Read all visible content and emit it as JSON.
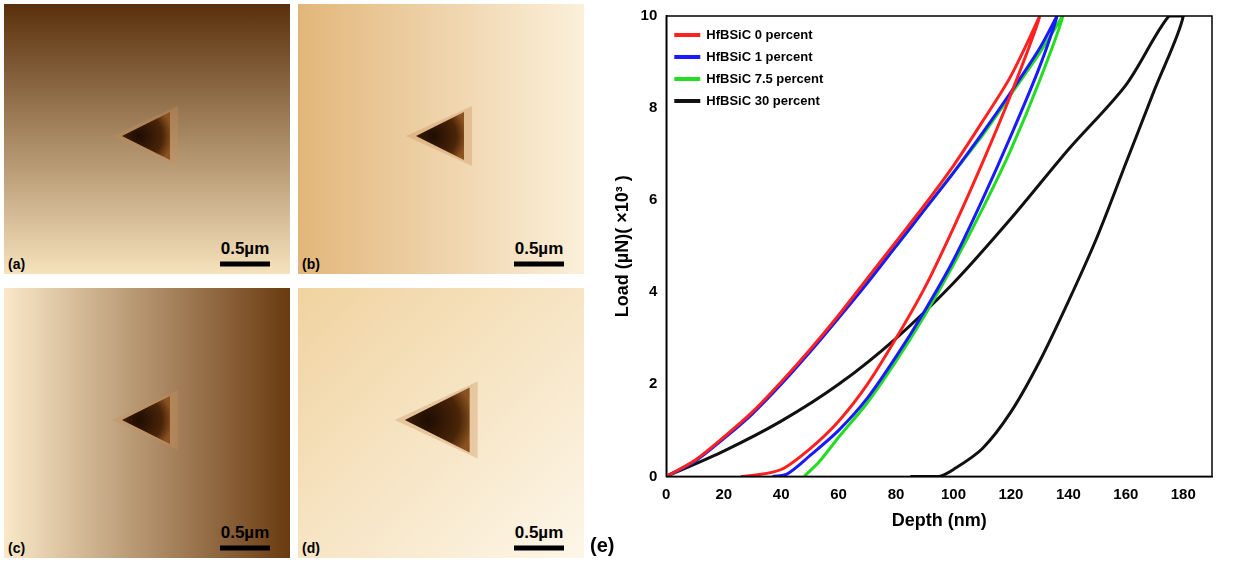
{
  "panels": [
    {
      "label": "(a)",
      "scale_bar": "0.5µm"
    },
    {
      "label": "(b)",
      "scale_bar": "0.5µm"
    },
    {
      "label": "(c)",
      "scale_bar": "0.5µm"
    },
    {
      "label": "(d)",
      "scale_bar": "0.5µm"
    }
  ],
  "chart_data": {
    "type": "line",
    "panel_label": "(e)",
    "x_label": "Depth (nm)",
    "y_label": "Load (µN)( ×10³ )",
    "xlim": [
      0,
      190
    ],
    "xticks": [
      0,
      20,
      40,
      60,
      80,
      100,
      120,
      140,
      160,
      180
    ],
    "ylim": [
      0,
      10
    ],
    "yticks": [
      0,
      2,
      4,
      6,
      8,
      10
    ],
    "grid": false,
    "legend": "upper left",
    "series": [
      {
        "name": "HfBSiC 0 percent",
        "color": "#ff2020",
        "x": [
          0,
          10,
          20,
          30,
          40,
          50,
          60,
          70,
          80,
          90,
          100,
          110,
          120,
          130,
          120,
          110,
          100,
          90,
          80,
          70,
          60,
          50,
          40,
          30,
          26
        ],
        "values": [
          0,
          0.35,
          0.85,
          1.4,
          2.05,
          2.75,
          3.5,
          4.3,
          5.1,
          5.9,
          6.75,
          7.7,
          8.7,
          10,
          8.3,
          6.8,
          5.4,
          4.1,
          3.0,
          2.0,
          1.2,
          0.6,
          0.15,
          0.02,
          0
        ]
      },
      {
        "name": "HfBSiC 1 percent",
        "color": "#1a1aff",
        "x": [
          0,
          10,
          20,
          30,
          40,
          50,
          60,
          70,
          80,
          90,
          100,
          110,
          120,
          130,
          136,
          130,
          120,
          110,
          100,
          90,
          80,
          70,
          60,
          50,
          42,
          37
        ],
        "values": [
          0,
          0.33,
          0.82,
          1.36,
          2.0,
          2.7,
          3.44,
          4.2,
          5.0,
          5.8,
          6.6,
          7.45,
          8.35,
          9.3,
          10,
          8.9,
          7.4,
          6.0,
          4.7,
          3.6,
          2.6,
          1.7,
          1.0,
          0.45,
          0.05,
          0
        ]
      },
      {
        "name": "HfBSiC 7.5 percent",
        "color": "#22dd22",
        "x": [
          0,
          10,
          20,
          30,
          40,
          50,
          60,
          70,
          80,
          90,
          100,
          110,
          120,
          130,
          138,
          130,
          120,
          110,
          100,
          90,
          80,
          70,
          60,
          53,
          48
        ],
        "values": [
          0,
          0.34,
          0.84,
          1.38,
          2.03,
          2.72,
          3.46,
          4.25,
          5.0,
          5.8,
          6.6,
          7.4,
          8.3,
          9.2,
          10,
          8.6,
          7.1,
          5.8,
          4.6,
          3.5,
          2.5,
          1.6,
          0.85,
          0.3,
          0
        ]
      },
      {
        "name": "HfBSiC 30 percent",
        "color": "#111111",
        "x": [
          0,
          20,
          40,
          60,
          80,
          100,
          120,
          140,
          160,
          175,
          180,
          170,
          160,
          150,
          140,
          130,
          120,
          110,
          100,
          95,
          85
        ],
        "values": [
          0,
          0.55,
          1.2,
          2.0,
          3.0,
          4.2,
          5.6,
          7.1,
          8.5,
          10,
          10,
          8.4,
          6.8,
          5.2,
          3.8,
          2.5,
          1.4,
          0.6,
          0.15,
          0,
          0
        ]
      }
    ]
  }
}
